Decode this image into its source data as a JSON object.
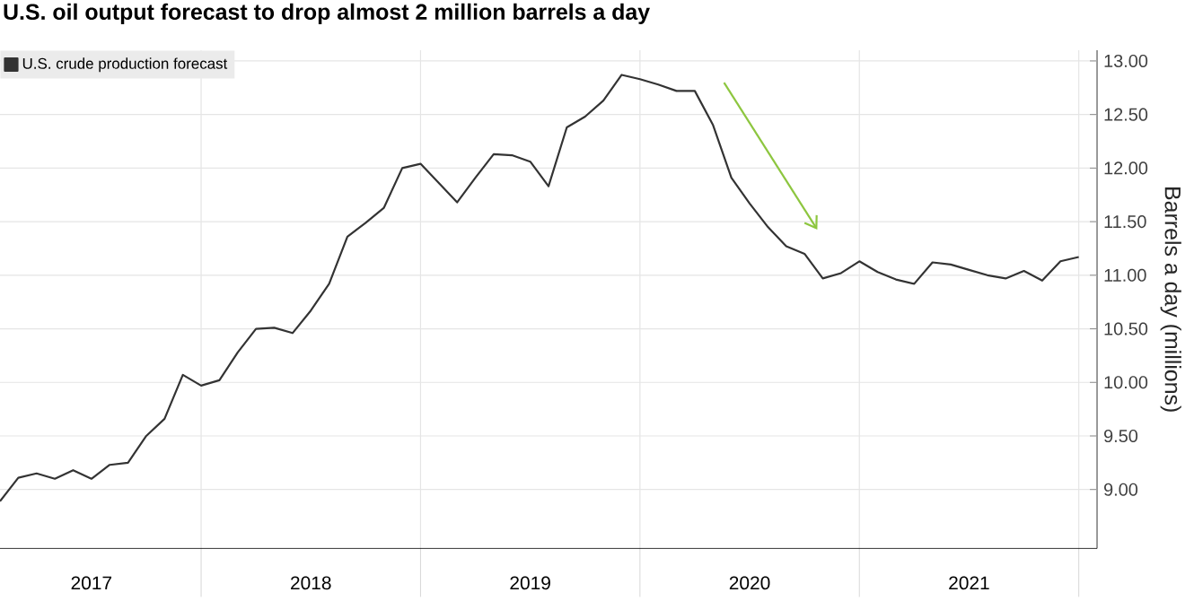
{
  "chart_data": {
    "type": "line",
    "title": "U.S. oil output forecast to drop almost 2 million barrels a day",
    "ylabel": "Barrels a day (millions)",
    "x": [
      "2017-02",
      "2017-03",
      "2017-04",
      "2017-05",
      "2017-06",
      "2017-07",
      "2017-08",
      "2017-09",
      "2017-10",
      "2017-11",
      "2017-12",
      "2018-01",
      "2018-02",
      "2018-03",
      "2018-04",
      "2018-05",
      "2018-06",
      "2018-07",
      "2018-08",
      "2018-09",
      "2018-10",
      "2018-11",
      "2018-12",
      "2019-01",
      "2019-02",
      "2019-03",
      "2019-04",
      "2019-05",
      "2019-06",
      "2019-07",
      "2019-08",
      "2019-09",
      "2019-10",
      "2019-11",
      "2019-12",
      "2020-01",
      "2020-02",
      "2020-03",
      "2020-04",
      "2020-05",
      "2020-06",
      "2020-07",
      "2020-08",
      "2020-09",
      "2020-10",
      "2020-11",
      "2020-12",
      "2021-01",
      "2021-02",
      "2021-03",
      "2021-04",
      "2021-05",
      "2021-06",
      "2021-07",
      "2021-08",
      "2021-09",
      "2021-10",
      "2021-11",
      "2021-12",
      "2022-01"
    ],
    "series": [
      {
        "name": "U.S. crude production forecast",
        "color": "#333333",
        "values": [
          8.89,
          9.11,
          9.15,
          9.1,
          9.18,
          9.1,
          9.23,
          9.25,
          9.5,
          9.66,
          10.07,
          9.97,
          10.02,
          10.28,
          10.5,
          10.51,
          10.46,
          10.67,
          10.92,
          11.36,
          11.49,
          11.63,
          12.0,
          12.04,
          11.86,
          11.68,
          11.91,
          12.13,
          12.12,
          12.06,
          11.83,
          12.38,
          12.48,
          12.63,
          12.87,
          12.83,
          12.78,
          12.72,
          12.72,
          12.4,
          11.91,
          11.67,
          11.45,
          11.27,
          11.2,
          10.97,
          11.02,
          11.13,
          11.03,
          10.96,
          10.92,
          11.12,
          11.1,
          11.05,
          11.0,
          10.97,
          11.04,
          10.95,
          11.13,
          11.17
        ]
      }
    ],
    "xlim": [
      "2017-02",
      "2022-02"
    ],
    "xticks": [
      {
        "value": "2017-07",
        "label": "2017"
      },
      {
        "value": "2018-01",
        "label": null
      },
      {
        "value": "2018-07",
        "label": "2018"
      },
      {
        "value": "2019-01",
        "label": null
      },
      {
        "value": "2019-07",
        "label": "2019"
      },
      {
        "value": "2020-01",
        "label": null
      },
      {
        "value": "2020-07",
        "label": "2020"
      },
      {
        "value": "2021-01",
        "label": null
      },
      {
        "value": "2021-07",
        "label": "2021"
      },
      {
        "value": "2022-01",
        "label": null
      }
    ],
    "ylim": [
      8.45,
      13.1
    ],
    "yticks": [
      {
        "value": 9,
        "label": "9.00"
      },
      {
        "value": 9.5,
        "label": "9.50"
      },
      {
        "value": 10,
        "label": "10.00"
      },
      {
        "value": 10.5,
        "label": "10.50"
      },
      {
        "value": 11,
        "label": "11.00"
      },
      {
        "value": 11.5,
        "label": "11.50"
      },
      {
        "value": 12,
        "label": "12.00"
      },
      {
        "value": 12.5,
        "label": "12.50"
      },
      {
        "value": 13,
        "label": "13.00"
      }
    ],
    "grid": true,
    "legend": "top left",
    "marker": "none",
    "line_style": "solid"
  }
}
